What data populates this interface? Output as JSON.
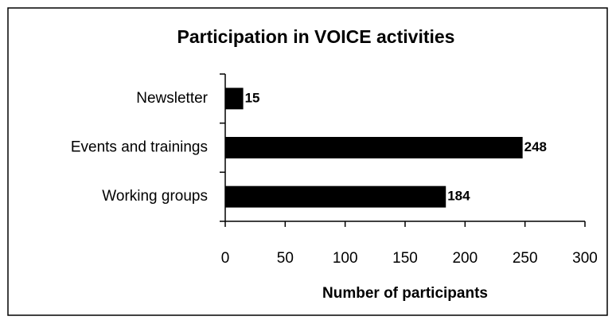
{
  "chart_data": {
    "type": "bar",
    "orientation": "horizontal",
    "title": "Participation in VOICE activities",
    "categories": [
      "Newsletter",
      "Events and trainings",
      "Working groups"
    ],
    "values": [
      15,
      248,
      184
    ],
    "color": "#000000",
    "xlabel": "Number of participants",
    "xlim": [
      0,
      300
    ],
    "xticks": [
      0,
      50,
      100,
      150,
      200,
      250,
      300
    ],
    "grid": false
  }
}
